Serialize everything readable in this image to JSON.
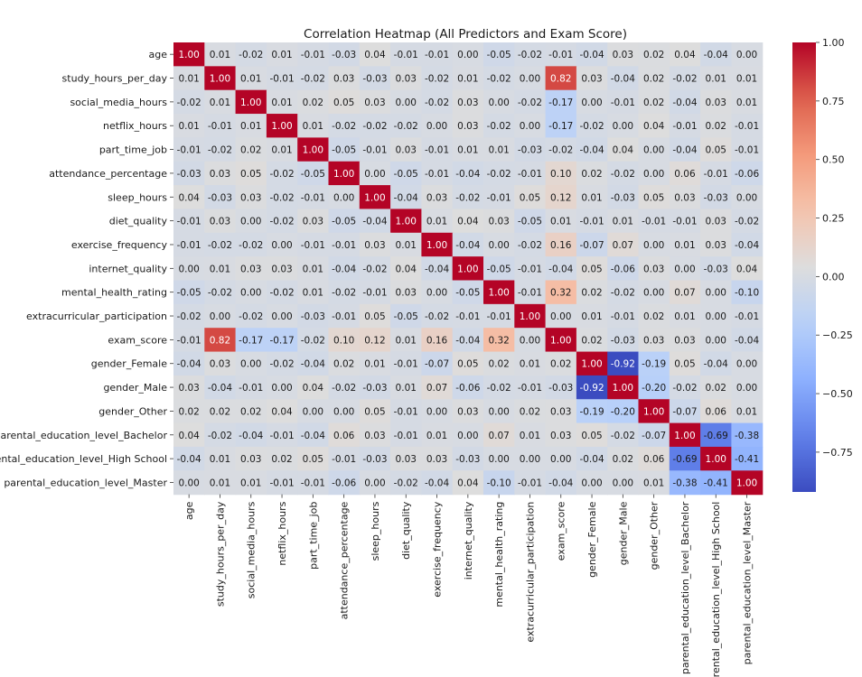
{
  "chart_data": {
    "type": "heatmap",
    "title": "Correlation Heatmap (All Predictors and Exam Score)",
    "xlabel": "",
    "ylabel": "",
    "labels": [
      "age",
      "study_hours_per_day",
      "social_media_hours",
      "netflix_hours",
      "part_time_job",
      "attendance_percentage",
      "sleep_hours",
      "diet_quality",
      "exercise_frequency",
      "internet_quality",
      "mental_health_rating",
      "extracurricular_participation",
      "exam_score",
      "gender_Female",
      "gender_Male",
      "gender_Other",
      "parental_education_level_Bachelor",
      "parental_education_level_High School",
      "parental_education_level_Master"
    ],
    "matrix": [
      [
        1.0,
        0.01,
        -0.02,
        0.01,
        -0.01,
        -0.03,
        0.04,
        -0.01,
        -0.01,
        0.0,
        -0.05,
        -0.02,
        -0.01,
        -0.04,
        0.03,
        0.02,
        0.04,
        -0.04,
        -0.0
      ],
      [
        0.01,
        1.0,
        0.01,
        -0.01,
        -0.02,
        0.03,
        -0.03,
        0.03,
        -0.02,
        0.01,
        -0.02,
        0.0,
        0.82,
        0.03,
        -0.04,
        0.02,
        -0.02,
        0.01,
        0.01
      ],
      [
        -0.02,
        0.01,
        1.0,
        0.01,
        0.02,
        0.05,
        0.03,
        -0.0,
        -0.02,
        0.03,
        -0.0,
        -0.02,
        -0.17,
        0.0,
        -0.01,
        0.02,
        -0.04,
        0.03,
        0.01
      ],
      [
        0.01,
        -0.01,
        0.01,
        1.0,
        0.01,
        -0.02,
        -0.02,
        -0.02,
        -0.0,
        0.03,
        -0.02,
        0.0,
        -0.17,
        -0.02,
        0.0,
        0.04,
        -0.01,
        0.02,
        -0.01
      ],
      [
        -0.01,
        -0.02,
        0.02,
        0.01,
        1.0,
        -0.05,
        -0.01,
        0.03,
        -0.01,
        0.01,
        0.01,
        -0.03,
        -0.02,
        -0.04,
        0.04,
        0.0,
        -0.04,
        0.05,
        -0.01
      ],
      [
        -0.03,
        0.03,
        0.05,
        -0.02,
        -0.05,
        1.0,
        0.0,
        -0.05,
        -0.01,
        -0.04,
        -0.02,
        -0.01,
        0.1,
        0.02,
        -0.02,
        0.0,
        0.06,
        -0.01,
        -0.06
      ],
      [
        0.04,
        -0.03,
        0.03,
        -0.02,
        -0.01,
        0.0,
        1.0,
        -0.04,
        0.03,
        -0.02,
        -0.01,
        0.05,
        0.12,
        0.01,
        -0.03,
        0.05,
        0.03,
        -0.03,
        -0.0
      ],
      [
        -0.01,
        0.03,
        -0.0,
        -0.02,
        0.03,
        -0.05,
        -0.04,
        1.0,
        0.01,
        0.04,
        0.03,
        -0.05,
        0.01,
        -0.01,
        0.01,
        -0.01,
        -0.01,
        0.03,
        -0.02
      ],
      [
        -0.01,
        -0.02,
        -0.02,
        -0.0,
        -0.01,
        -0.01,
        0.03,
        0.01,
        1.0,
        -0.04,
        -0.0,
        -0.02,
        0.16,
        -0.07,
        0.07,
        0.0,
        0.01,
        0.03,
        -0.04
      ],
      [
        0.0,
        0.01,
        0.03,
        0.03,
        0.01,
        -0.04,
        -0.02,
        0.04,
        -0.04,
        1.0,
        -0.05,
        -0.01,
        -0.04,
        0.05,
        -0.06,
        0.03,
        0.0,
        -0.03,
        0.04
      ],
      [
        -0.05,
        -0.02,
        -0.0,
        -0.02,
        0.01,
        -0.02,
        -0.01,
        0.03,
        -0.0,
        -0.05,
        1.0,
        -0.01,
        0.32,
        0.02,
        -0.02,
        0.0,
        0.07,
        0.0,
        -0.1
      ],
      [
        -0.02,
        0.0,
        -0.02,
        0.0,
        -0.03,
        -0.01,
        0.05,
        -0.05,
        -0.02,
        -0.01,
        -0.01,
        1.0,
        0.0,
        0.01,
        -0.01,
        0.02,
        0.01,
        -0.0,
        -0.01
      ],
      [
        -0.01,
        0.82,
        -0.17,
        -0.17,
        -0.02,
        0.1,
        0.12,
        0.01,
        0.16,
        -0.04,
        0.32,
        0.0,
        1.0,
        0.02,
        -0.03,
        0.03,
        0.03,
        -0.0,
        -0.04
      ],
      [
        -0.04,
        0.03,
        0.0,
        -0.02,
        -0.04,
        0.02,
        0.01,
        -0.01,
        -0.07,
        0.05,
        0.02,
        0.01,
        0.02,
        1.0,
        -0.92,
        -0.19,
        0.05,
        -0.04,
        -0.0
      ],
      [
        0.03,
        -0.04,
        -0.01,
        0.0,
        0.04,
        -0.02,
        -0.03,
        0.01,
        0.07,
        -0.06,
        -0.02,
        -0.01,
        -0.03,
        -0.92,
        1.0,
        -0.2,
        -0.02,
        0.02,
        0.0
      ],
      [
        0.02,
        0.02,
        0.02,
        0.04,
        0.0,
        0.0,
        0.05,
        -0.01,
        0.0,
        0.03,
        0.0,
        0.02,
        0.03,
        -0.19,
        -0.2,
        1.0,
        -0.07,
        0.06,
        0.01
      ],
      [
        0.04,
        -0.02,
        -0.04,
        -0.01,
        -0.04,
        0.06,
        0.03,
        -0.01,
        0.01,
        0.0,
        0.07,
        0.01,
        0.03,
        0.05,
        -0.02,
        -0.07,
        1.0,
        -0.69,
        -0.38
      ],
      [
        -0.04,
        0.01,
        0.03,
        0.02,
        0.05,
        -0.01,
        -0.03,
        0.03,
        0.03,
        -0.03,
        0.0,
        -0.0,
        -0.0,
        -0.04,
        0.02,
        0.06,
        -0.69,
        1.0,
        -0.41
      ],
      [
        -0.0,
        0.01,
        0.01,
        -0.01,
        -0.01,
        -0.06,
        -0.0,
        -0.02,
        -0.04,
        0.04,
        -0.1,
        -0.01,
        -0.04,
        -0.0,
        0.0,
        0.01,
        -0.38,
        -0.41,
        1.0
      ]
    ],
    "colorbar": {
      "min": -0.92,
      "max": 1.0,
      "ticks": [
        1.0,
        0.75,
        0.5,
        0.25,
        0.0,
        -0.25,
        -0.5,
        -0.75
      ],
      "tick_labels": [
        "1.00",
        "0.75",
        "0.50",
        "0.25",
        "0.00",
        "−0.25",
        "−0.50",
        "−0.75"
      ],
      "colormap": "coolwarm",
      "colors": [
        "#3b4cc0",
        "#dddddd",
        "#b40426"
      ]
    },
    "annotations": "cell values shown with two decimals",
    "grid": false
  }
}
